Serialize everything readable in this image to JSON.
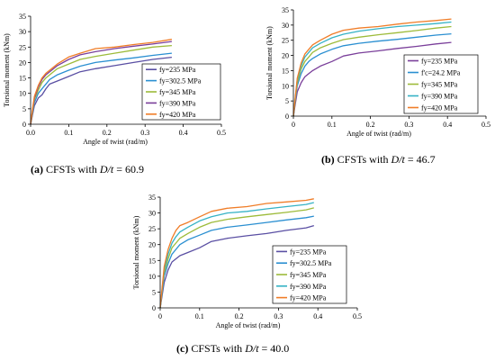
{
  "chart_data": [
    {
      "type": "line",
      "panel": "a",
      "caption": {
        "label": "(a)",
        "text": "CFSTs with",
        "variable": "D/t",
        "value": "= 60.9"
      },
      "title": "",
      "xlabel": "Angle of twist (rad/m)",
      "ylabel": "Torsional moment (kNm)",
      "xlim": [
        0.0,
        0.5
      ],
      "ylim": [
        0,
        35
      ],
      "xticks": [
        "0.0",
        "0.1",
        "0.2",
        "0.3",
        "0.4",
        "0.5"
      ],
      "yticks": [
        "0",
        "5",
        "10",
        "15",
        "20",
        "25",
        "30",
        "35"
      ],
      "grid": false,
      "legend_position": "right",
      "series": [
        {
          "name": "fy=235 MPa",
          "color": "#5a4fa3",
          "points": [
            [
              0,
              0
            ],
            [
              0.005,
              3
            ],
            [
              0.01,
              6
            ],
            [
              0.02,
              8.5
            ],
            [
              0.03,
              9.5
            ],
            [
              0.04,
              11.5
            ],
            [
              0.05,
              13
            ],
            [
              0.07,
              14
            ],
            [
              0.1,
              15.5
            ],
            [
              0.13,
              17
            ],
            [
              0.17,
              18
            ],
            [
              0.22,
              19
            ],
            [
              0.27,
              20
            ],
            [
              0.32,
              21
            ],
            [
              0.37,
              21.7
            ]
          ]
        },
        {
          "name": "fy=302.5 MPa",
          "color": "#2a8fd1",
          "points": [
            [
              0,
              0
            ],
            [
              0.005,
              3.5
            ],
            [
              0.01,
              7
            ],
            [
              0.02,
              10
            ],
            [
              0.03,
              11.5
            ],
            [
              0.04,
              13
            ],
            [
              0.05,
              14.5
            ],
            [
              0.07,
              16
            ],
            [
              0.1,
              17.5
            ],
            [
              0.13,
              18.8
            ],
            [
              0.17,
              20
            ],
            [
              0.22,
              20.8
            ],
            [
              0.27,
              21.5
            ],
            [
              0.32,
              22.3
            ],
            [
              0.37,
              23
            ]
          ]
        },
        {
          "name": "fy=345 MPa",
          "color": "#9dbb3a",
          "points": [
            [
              0,
              0
            ],
            [
              0.005,
              4
            ],
            [
              0.01,
              8
            ],
            [
              0.02,
              11
            ],
            [
              0.03,
              13.5
            ],
            [
              0.04,
              15
            ],
            [
              0.05,
              16
            ],
            [
              0.07,
              18
            ],
            [
              0.1,
              19.5
            ],
            [
              0.13,
              21
            ],
            [
              0.17,
              22
            ],
            [
              0.22,
              23
            ],
            [
              0.27,
              24
            ],
            [
              0.32,
              25
            ],
            [
              0.37,
              25.5
            ]
          ]
        },
        {
          "name": "fy=390 MPa",
          "color": "#7a3f9a",
          "points": [
            [
              0,
              0
            ],
            [
              0.005,
              4.5
            ],
            [
              0.01,
              8.5
            ],
            [
              0.02,
              12
            ],
            [
              0.03,
              14.5
            ],
            [
              0.04,
              16
            ],
            [
              0.05,
              17
            ],
            [
              0.07,
              19
            ],
            [
              0.1,
              21
            ],
            [
              0.13,
              22.5
            ],
            [
              0.17,
              23.5
            ],
            [
              0.22,
              24.5
            ],
            [
              0.27,
              25.3
            ],
            [
              0.32,
              26
            ],
            [
              0.37,
              26.8
            ]
          ]
        },
        {
          "name": "fy=420 MPa",
          "color": "#f07d28",
          "points": [
            [
              0,
              0
            ],
            [
              0.005,
              4.8
            ],
            [
              0.01,
              9
            ],
            [
              0.02,
              12.5
            ],
            [
              0.03,
              15
            ],
            [
              0.04,
              16.5
            ],
            [
              0.05,
              17.5
            ],
            [
              0.07,
              19.5
            ],
            [
              0.1,
              21.8
            ],
            [
              0.13,
              23
            ],
            [
              0.17,
              24.5
            ],
            [
              0.22,
              25
            ],
            [
              0.27,
              25.8
            ],
            [
              0.32,
              26.5
            ],
            [
              0.37,
              27.5
            ]
          ]
        }
      ]
    },
    {
      "type": "line",
      "panel": "b",
      "caption": {
        "label": "(b)",
        "text": "CFSTs with",
        "variable": "D/t",
        "value": "= 46.7"
      },
      "title": "",
      "xlabel": "Angle of twist (rad/m)",
      "ylabel": "Torsional moment (kNm)",
      "xlim": [
        0.0,
        0.5
      ],
      "ylim": [
        0,
        35
      ],
      "xticks": [
        "0",
        "0.1",
        "0.2",
        "0.3",
        "0.4",
        "0.5"
      ],
      "yticks": [
        "0",
        "5",
        "10",
        "15",
        "20",
        "25",
        "30",
        "35"
      ],
      "grid": false,
      "legend_position": "right",
      "series": [
        {
          "name": "fy=235 MPa",
          "color": "#7a3f9a",
          "points": [
            [
              0,
              0
            ],
            [
              0.005,
              4
            ],
            [
              0.01,
              8
            ],
            [
              0.02,
              11
            ],
            [
              0.03,
              13
            ],
            [
              0.04,
              14
            ],
            [
              0.05,
              15
            ],
            [
              0.07,
              16.5
            ],
            [
              0.1,
              18
            ],
            [
              0.13,
              19.8
            ],
            [
              0.17,
              20.8
            ],
            [
              0.22,
              21.5
            ],
            [
              0.27,
              22.3
            ],
            [
              0.32,
              23
            ],
            [
              0.37,
              23.8
            ],
            [
              0.41,
              24.3
            ]
          ]
        },
        {
          "name": "f'c=24.2 MPa",
          "color": "#2a8fd1",
          "points": [
            [
              0,
              0
            ],
            [
              0.005,
              5
            ],
            [
              0.01,
              10
            ],
            [
              0.02,
              14
            ],
            [
              0.03,
              16.5
            ],
            [
              0.04,
              18
            ],
            [
              0.05,
              19
            ],
            [
              0.07,
              20.5
            ],
            [
              0.1,
              22
            ],
            [
              0.13,
              23.2
            ],
            [
              0.17,
              24
            ],
            [
              0.22,
              24.7
            ],
            [
              0.27,
              25.3
            ],
            [
              0.32,
              26
            ],
            [
              0.37,
              26.7
            ],
            [
              0.41,
              27.1
            ]
          ]
        },
        {
          "name": "fy=345 MPa",
          "color": "#9dbb3a",
          "points": [
            [
              0,
              0
            ],
            [
              0.005,
              5.5
            ],
            [
              0.01,
              11
            ],
            [
              0.02,
              15.5
            ],
            [
              0.03,
              18
            ],
            [
              0.04,
              19.5
            ],
            [
              0.05,
              21
            ],
            [
              0.07,
              22.5
            ],
            [
              0.1,
              24
            ],
            [
              0.13,
              25.2
            ],
            [
              0.17,
              26
            ],
            [
              0.22,
              26.8
            ],
            [
              0.27,
              27.5
            ],
            [
              0.32,
              28.2
            ],
            [
              0.37,
              29
            ],
            [
              0.41,
              29.5
            ]
          ]
        },
        {
          "name": "fy=390 MPa",
          "color": "#35b2c5",
          "points": [
            [
              0,
              0
            ],
            [
              0.005,
              6
            ],
            [
              0.01,
              12
            ],
            [
              0.02,
              16.5
            ],
            [
              0.03,
              19.5
            ],
            [
              0.04,
              21
            ],
            [
              0.05,
              22.5
            ],
            [
              0.07,
              24
            ],
            [
              0.1,
              25.8
            ],
            [
              0.13,
              27
            ],
            [
              0.17,
              28
            ],
            [
              0.22,
              28.8
            ],
            [
              0.27,
              29.5
            ],
            [
              0.32,
              30
            ],
            [
              0.37,
              30.5
            ],
            [
              0.41,
              31
            ]
          ]
        },
        {
          "name": "fy=420 MPa",
          "color": "#f07d28",
          "points": [
            [
              0,
              0
            ],
            [
              0.005,
              6.3
            ],
            [
              0.01,
              12.5
            ],
            [
              0.02,
              17.5
            ],
            [
              0.03,
              20.5
            ],
            [
              0.04,
              22
            ],
            [
              0.05,
              23.5
            ],
            [
              0.07,
              25
            ],
            [
              0.1,
              27
            ],
            [
              0.13,
              28.3
            ],
            [
              0.17,
              29
            ],
            [
              0.22,
              29.5
            ],
            [
              0.27,
              30.3
            ],
            [
              0.32,
              31
            ],
            [
              0.37,
              31.5
            ],
            [
              0.41,
              32
            ]
          ]
        }
      ]
    },
    {
      "type": "line",
      "panel": "c",
      "caption": {
        "label": "(c)",
        "text": "CFSTs with",
        "variable": "D/t",
        "value": "= 40.0"
      },
      "title": "",
      "xlabel": "Angle of twist (rad/m)",
      "ylabel": "Torsional moment (kNm)",
      "xlim": [
        0,
        0.5
      ],
      "ylim": [
        0,
        35
      ],
      "xticks": [
        "0",
        "0.1",
        "0.2",
        "0.3",
        "0.4",
        "0.5"
      ],
      "yticks": [
        "0",
        "5",
        "10",
        "15",
        "20",
        "25",
        "30",
        "35"
      ],
      "grid": false,
      "legend_position": "right",
      "series": [
        {
          "name": "fy=235 MPa",
          "color": "#5a4fa3",
          "points": [
            [
              0,
              0
            ],
            [
              0.005,
              4
            ],
            [
              0.01,
              8
            ],
            [
              0.02,
              12
            ],
            [
              0.03,
              14.5
            ],
            [
              0.04,
              15.5
            ],
            [
              0.05,
              16.5
            ],
            [
              0.07,
              17.5
            ],
            [
              0.1,
              19
            ],
            [
              0.13,
              21
            ],
            [
              0.17,
              22
            ],
            [
              0.22,
              22.8
            ],
            [
              0.27,
              23.5
            ],
            [
              0.32,
              24.5
            ],
            [
              0.37,
              25.3
            ],
            [
              0.39,
              26
            ]
          ]
        },
        {
          "name": "fy=302.5 MPa",
          "color": "#2a8fd1",
          "points": [
            [
              0,
              0
            ],
            [
              0.005,
              5
            ],
            [
              0.01,
              10
            ],
            [
              0.02,
              14
            ],
            [
              0.03,
              17
            ],
            [
              0.04,
              18.5
            ],
            [
              0.05,
              20
            ],
            [
              0.07,
              21.5
            ],
            [
              0.1,
              23
            ],
            [
              0.13,
              24.5
            ],
            [
              0.17,
              25.5
            ],
            [
              0.22,
              26.2
            ],
            [
              0.27,
              27
            ],
            [
              0.32,
              27.8
            ],
            [
              0.37,
              28.5
            ],
            [
              0.39,
              29
            ]
          ]
        },
        {
          "name": "fy=345 MPa",
          "color": "#9dbb3a",
          "points": [
            [
              0,
              0
            ],
            [
              0.005,
              5.5
            ],
            [
              0.01,
              11
            ],
            [
              0.02,
              15.5
            ],
            [
              0.03,
              19
            ],
            [
              0.04,
              20.5
            ],
            [
              0.05,
              22
            ],
            [
              0.07,
              23.5
            ],
            [
              0.1,
              25.5
            ],
            [
              0.13,
              27
            ],
            [
              0.17,
              28
            ],
            [
              0.22,
              28.8
            ],
            [
              0.27,
              29.5
            ],
            [
              0.32,
              30.2
            ],
            [
              0.37,
              31
            ],
            [
              0.39,
              31.6
            ]
          ]
        },
        {
          "name": "fy=390 MPa",
          "color": "#35b2c5",
          "points": [
            [
              0,
              0
            ],
            [
              0.005,
              6
            ],
            [
              0.01,
              12
            ],
            [
              0.02,
              17
            ],
            [
              0.03,
              20.5
            ],
            [
              0.04,
              22.5
            ],
            [
              0.05,
              24
            ],
            [
              0.07,
              25.5
            ],
            [
              0.1,
              27.5
            ],
            [
              0.13,
              28.8
            ],
            [
              0.17,
              30
            ],
            [
              0.22,
              30.5
            ],
            [
              0.27,
              31.3
            ],
            [
              0.32,
              32
            ],
            [
              0.37,
              32.7
            ],
            [
              0.39,
              33.3
            ]
          ]
        },
        {
          "name": "fy=420 MPa",
          "color": "#f07d28",
          "points": [
            [
              0,
              0
            ],
            [
              0.005,
              6.5
            ],
            [
              0.01,
              13
            ],
            [
              0.02,
              18.5
            ],
            [
              0.03,
              22
            ],
            [
              0.04,
              24.5
            ],
            [
              0.05,
              26
            ],
            [
              0.07,
              27
            ],
            [
              0.1,
              28.8
            ],
            [
              0.13,
              30.5
            ],
            [
              0.17,
              31.5
            ],
            [
              0.22,
              32
            ],
            [
              0.27,
              33
            ],
            [
              0.32,
              33.5
            ],
            [
              0.37,
              34
            ],
            [
              0.39,
              34.5
            ]
          ]
        }
      ]
    }
  ]
}
